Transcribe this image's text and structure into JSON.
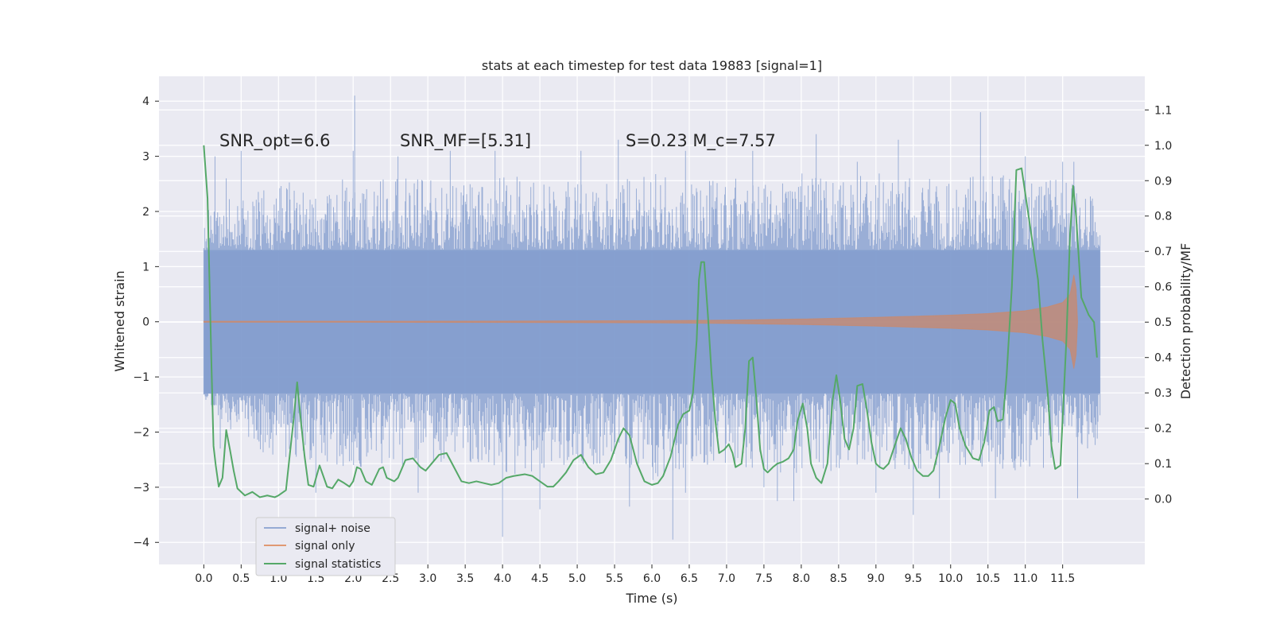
{
  "chart_data": {
    "type": "line",
    "title": "stats at each timestep for test data 19883 [signal=1]",
    "xlabel": "Time (s)",
    "ylabel_left": "Whitened strain",
    "ylabel_right": "Detection probability/MF",
    "xlim": [
      -0.6,
      12.6
    ],
    "ylim_left": [
      -4.4,
      4.45
    ],
    "ylim_right": [
      -0.185,
      1.195
    ],
    "x_ticks": [
      0.0,
      0.5,
      1.0,
      1.5,
      2.0,
      2.5,
      3.0,
      3.5,
      4.0,
      4.5,
      5.0,
      5.5,
      6.0,
      6.5,
      7.0,
      7.5,
      8.0,
      8.5,
      9.0,
      9.5,
      10.0,
      10.5,
      11.0,
      11.5
    ],
    "x_tick_labels": [
      "0.0",
      "0.5",
      "1.0",
      "1.5",
      "2.0",
      "2.5",
      "3.0",
      "3.5",
      "4.0",
      "4.5",
      "5.0",
      "5.5",
      "6.0",
      "6.5",
      "7.0",
      "7.5",
      "8.0",
      "8.5",
      "9.0",
      "9.5",
      "10.0",
      "10.5",
      "11.0",
      "11.5"
    ],
    "y_left_ticks": [
      -4,
      -3,
      -2,
      -1,
      0,
      1,
      2,
      3,
      4
    ],
    "y_left_tick_labels": [
      "−4",
      "−3",
      "−2",
      "−1",
      "0",
      "1",
      "2",
      "3",
      "4"
    ],
    "y_right_ticks": [
      0.0,
      0.1,
      0.2,
      0.3,
      0.4,
      0.5,
      0.6,
      0.7,
      0.8,
      0.9,
      1.0,
      1.1
    ],
    "y_right_tick_labels": [
      "0.0",
      "0.1",
      "0.2",
      "0.3",
      "0.4",
      "0.5",
      "0.6",
      "0.7",
      "0.8",
      "0.9",
      "1.0",
      "1.1"
    ],
    "grid": true,
    "legend_position": "lower-left",
    "annotations": [
      {
        "text": "SNR_opt=6.6",
        "x": 0.2,
        "y": 3.3
      },
      {
        "text": "SNR_MF=[5.31]",
        "x": 2.6,
        "y": 3.3
      },
      {
        "text": "S=0.23   M_c=7.57",
        "x": 5.6,
        "y": 3.3
      }
    ],
    "series": [
      {
        "name": "signal+ noise",
        "axis": "left",
        "color": "#7f9acc",
        "kind": "noise",
        "x_range": [
          0.0,
          12.0
        ],
        "envelope": [
          [
            0.0,
            -1.4,
            2.0
          ],
          [
            0.5,
            -2.2,
            2.4
          ],
          [
            1.0,
            -2.5,
            2.5
          ],
          [
            1.5,
            -2.5,
            2.6
          ],
          [
            2.0,
            -2.7,
            2.7
          ],
          [
            2.5,
            -2.6,
            2.6
          ],
          [
            3.0,
            -2.6,
            2.6
          ],
          [
            3.5,
            -2.6,
            2.6
          ],
          [
            4.0,
            -2.8,
            2.7
          ],
          [
            4.5,
            -2.7,
            2.6
          ],
          [
            5.0,
            -2.6,
            2.6
          ],
          [
            5.5,
            -2.6,
            2.6
          ],
          [
            6.0,
            -2.9,
            2.7
          ],
          [
            6.5,
            -2.6,
            2.5
          ],
          [
            7.0,
            -2.6,
            2.6
          ],
          [
            7.5,
            -2.7,
            2.6
          ],
          [
            8.0,
            -2.8,
            2.7
          ],
          [
            8.5,
            -2.7,
            2.6
          ],
          [
            9.0,
            -2.7,
            2.7
          ],
          [
            9.5,
            -2.7,
            2.6
          ],
          [
            10.0,
            -2.6,
            2.6
          ],
          [
            10.5,
            -2.7,
            2.7
          ],
          [
            11.0,
            -2.7,
            2.6
          ],
          [
            11.5,
            -2.6,
            2.6
          ],
          [
            12.0,
            -2.2,
            2.2
          ]
        ],
        "spikes": [
          [
            0.15,
            3.0
          ],
          [
            0.22,
            -2.3
          ],
          [
            0.3,
            2.6
          ],
          [
            0.5,
            3.1
          ],
          [
            1.25,
            -1.3
          ],
          [
            1.5,
            -3.1
          ],
          [
            2.0,
            3.1
          ],
          [
            2.02,
            4.1
          ],
          [
            2.6,
            3.0
          ],
          [
            2.87,
            -3.1
          ],
          [
            3.3,
            3.1
          ],
          [
            3.9,
            3.1
          ],
          [
            4.0,
            -3.9
          ],
          [
            4.5,
            -3.4
          ],
          [
            5.05,
            3.1
          ],
          [
            5.55,
            3.3
          ],
          [
            5.7,
            -3.35
          ],
          [
            6.28,
            -3.95
          ],
          [
            6.45,
            3.1
          ],
          [
            6.45,
            -3.1
          ],
          [
            7.35,
            3.1
          ],
          [
            7.5,
            -3.0
          ],
          [
            7.68,
            -3.25
          ],
          [
            7.9,
            -3.25
          ],
          [
            8.2,
            3.4
          ],
          [
            8.75,
            2.9
          ],
          [
            9.0,
            -3.1
          ],
          [
            9.3,
            3.3
          ],
          [
            9.5,
            -3.5
          ],
          [
            9.85,
            -3.2
          ],
          [
            10.4,
            3.8
          ],
          [
            10.6,
            -3.2
          ],
          [
            11.0,
            3.0
          ],
          [
            11.5,
            2.9
          ],
          [
            11.65,
            2.9
          ],
          [
            11.7,
            -3.2
          ]
        ]
      },
      {
        "name": "signal only",
        "axis": "left",
        "color": "#dd8452",
        "kind": "chirp",
        "envelope": [
          [
            0.0,
            0.01
          ],
          [
            2.0,
            0.01
          ],
          [
            4.0,
            0.012
          ],
          [
            6.0,
            0.02
          ],
          [
            7.0,
            0.03
          ],
          [
            8.0,
            0.05
          ],
          [
            9.0,
            0.08
          ],
          [
            10.0,
            0.12
          ],
          [
            10.5,
            0.15
          ],
          [
            11.0,
            0.2
          ],
          [
            11.3,
            0.27
          ],
          [
            11.5,
            0.35
          ],
          [
            11.6,
            0.5
          ],
          [
            11.65,
            0.85
          ],
          [
            11.68,
            0.6
          ],
          [
            11.7,
            0.0
          ]
        ]
      },
      {
        "name": "signal statistics",
        "axis": "right",
        "color": "#55a868",
        "kind": "line",
        "points": [
          [
            0.0,
            1.0
          ],
          [
            0.05,
            0.85
          ],
          [
            0.1,
            0.4
          ],
          [
            0.13,
            0.15
          ],
          [
            0.16,
            0.095
          ],
          [
            0.2,
            0.035
          ],
          [
            0.25,
            0.06
          ],
          [
            0.3,
            0.195
          ],
          [
            0.35,
            0.14
          ],
          [
            0.4,
            0.08
          ],
          [
            0.45,
            0.03
          ],
          [
            0.55,
            0.01
          ],
          [
            0.65,
            0.02
          ],
          [
            0.75,
            0.005
          ],
          [
            0.85,
            0.01
          ],
          [
            0.95,
            0.005
          ],
          [
            1.0,
            0.01
          ],
          [
            1.1,
            0.025
          ],
          [
            1.2,
            0.22
          ],
          [
            1.25,
            0.33
          ],
          [
            1.3,
            0.22
          ],
          [
            1.35,
            0.12
          ],
          [
            1.4,
            0.04
          ],
          [
            1.47,
            0.035
          ],
          [
            1.55,
            0.095
          ],
          [
            1.65,
            0.035
          ],
          [
            1.72,
            0.03
          ],
          [
            1.8,
            0.055
          ],
          [
            1.88,
            0.045
          ],
          [
            1.95,
            0.035
          ],
          [
            2.0,
            0.05
          ],
          [
            2.05,
            0.09
          ],
          [
            2.1,
            0.085
          ],
          [
            2.17,
            0.05
          ],
          [
            2.25,
            0.04
          ],
          [
            2.35,
            0.085
          ],
          [
            2.4,
            0.09
          ],
          [
            2.45,
            0.06
          ],
          [
            2.55,
            0.05
          ],
          [
            2.6,
            0.06
          ],
          [
            2.7,
            0.11
          ],
          [
            2.8,
            0.115
          ],
          [
            2.9,
            0.09
          ],
          [
            2.97,
            0.08
          ],
          [
            3.05,
            0.1
          ],
          [
            3.15,
            0.125
          ],
          [
            3.25,
            0.13
          ],
          [
            3.35,
            0.09
          ],
          [
            3.45,
            0.05
          ],
          [
            3.55,
            0.045
          ],
          [
            3.65,
            0.05
          ],
          [
            3.75,
            0.045
          ],
          [
            3.85,
            0.04
          ],
          [
            3.95,
            0.045
          ],
          [
            4.05,
            0.06
          ],
          [
            4.15,
            0.065
          ],
          [
            4.3,
            0.07
          ],
          [
            4.4,
            0.065
          ],
          [
            4.5,
            0.05
          ],
          [
            4.6,
            0.035
          ],
          [
            4.68,
            0.035
          ],
          [
            4.75,
            0.05
          ],
          [
            4.85,
            0.075
          ],
          [
            4.95,
            0.11
          ],
          [
            5.05,
            0.125
          ],
          [
            5.15,
            0.09
          ],
          [
            5.25,
            0.07
          ],
          [
            5.35,
            0.075
          ],
          [
            5.45,
            0.11
          ],
          [
            5.55,
            0.17
          ],
          [
            5.62,
            0.2
          ],
          [
            5.7,
            0.18
          ],
          [
            5.8,
            0.1
          ],
          [
            5.9,
            0.05
          ],
          [
            6.0,
            0.04
          ],
          [
            6.08,
            0.045
          ],
          [
            6.15,
            0.065
          ],
          [
            6.25,
            0.12
          ],
          [
            6.35,
            0.21
          ],
          [
            6.42,
            0.24
          ],
          [
            6.5,
            0.25
          ],
          [
            6.55,
            0.3
          ],
          [
            6.6,
            0.45
          ],
          [
            6.63,
            0.62
          ],
          [
            6.66,
            0.67
          ],
          [
            6.7,
            0.67
          ],
          [
            6.75,
            0.52
          ],
          [
            6.8,
            0.35
          ],
          [
            6.85,
            0.22
          ],
          [
            6.9,
            0.13
          ],
          [
            6.97,
            0.14
          ],
          [
            7.03,
            0.155
          ],
          [
            7.08,
            0.13
          ],
          [
            7.12,
            0.09
          ],
          [
            7.2,
            0.1
          ],
          [
            7.25,
            0.2
          ],
          [
            7.3,
            0.39
          ],
          [
            7.35,
            0.4
          ],
          [
            7.4,
            0.28
          ],
          [
            7.45,
            0.14
          ],
          [
            7.5,
            0.085
          ],
          [
            7.55,
            0.075
          ],
          [
            7.62,
            0.09
          ],
          [
            7.68,
            0.1
          ],
          [
            7.75,
            0.105
          ],
          [
            7.83,
            0.115
          ],
          [
            7.9,
            0.14
          ],
          [
            7.95,
            0.22
          ],
          [
            8.02,
            0.27
          ],
          [
            8.08,
            0.2
          ],
          [
            8.13,
            0.1
          ],
          [
            8.2,
            0.06
          ],
          [
            8.27,
            0.045
          ],
          [
            8.35,
            0.1
          ],
          [
            8.42,
            0.28
          ],
          [
            8.47,
            0.35
          ],
          [
            8.52,
            0.28
          ],
          [
            8.58,
            0.17
          ],
          [
            8.64,
            0.14
          ],
          [
            8.7,
            0.2
          ],
          [
            8.75,
            0.32
          ],
          [
            8.82,
            0.325
          ],
          [
            8.88,
            0.25
          ],
          [
            8.94,
            0.16
          ],
          [
            9.0,
            0.1
          ],
          [
            9.05,
            0.09
          ],
          [
            9.1,
            0.085
          ],
          [
            9.17,
            0.1
          ],
          [
            9.25,
            0.15
          ],
          [
            9.33,
            0.2
          ],
          [
            9.4,
            0.17
          ],
          [
            9.47,
            0.12
          ],
          [
            9.55,
            0.08
          ],
          [
            9.63,
            0.065
          ],
          [
            9.7,
            0.065
          ],
          [
            9.77,
            0.08
          ],
          [
            9.85,
            0.15
          ],
          [
            9.93,
            0.23
          ],
          [
            10.0,
            0.28
          ],
          [
            10.06,
            0.27
          ],
          [
            10.12,
            0.2
          ],
          [
            10.2,
            0.15
          ],
          [
            10.3,
            0.115
          ],
          [
            10.38,
            0.11
          ],
          [
            10.45,
            0.16
          ],
          [
            10.52,
            0.25
          ],
          [
            10.58,
            0.26
          ],
          [
            10.63,
            0.22
          ],
          [
            10.7,
            0.225
          ],
          [
            10.75,
            0.35
          ],
          [
            10.82,
            0.6
          ],
          [
            10.88,
            0.93
          ],
          [
            10.95,
            0.935
          ],
          [
            11.03,
            0.82
          ],
          [
            11.1,
            0.72
          ],
          [
            11.17,
            0.62
          ],
          [
            11.23,
            0.45
          ],
          [
            11.3,
            0.3
          ],
          [
            11.35,
            0.15
          ],
          [
            11.4,
            0.085
          ],
          [
            11.47,
            0.095
          ],
          [
            11.55,
            0.45
          ],
          [
            11.6,
            0.75
          ],
          [
            11.64,
            0.885
          ],
          [
            11.68,
            0.8
          ],
          [
            11.75,
            0.57
          ],
          [
            11.85,
            0.52
          ],
          [
            11.92,
            0.5
          ],
          [
            11.96,
            0.4
          ]
        ]
      }
    ]
  }
}
